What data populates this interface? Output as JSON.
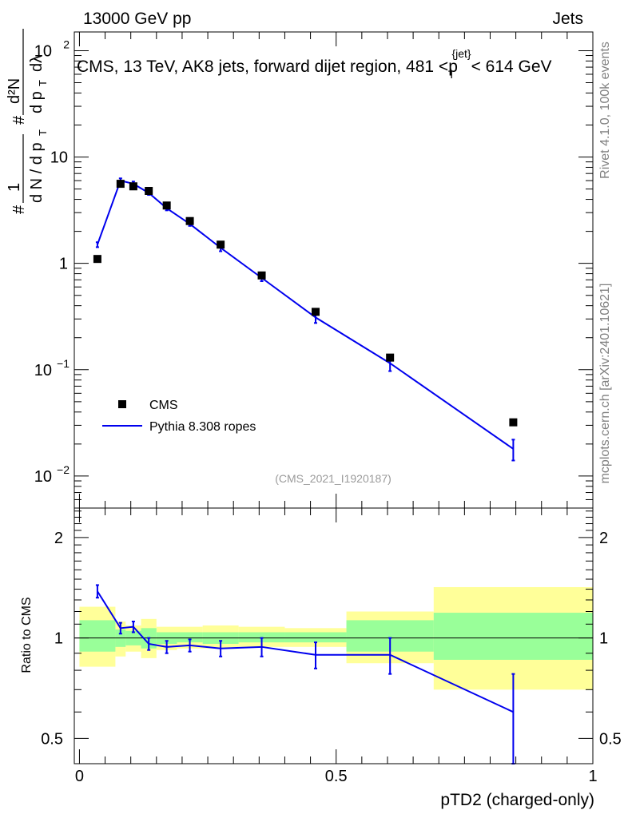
{
  "header": {
    "left": "13000 GeV pp",
    "right": "Jets"
  },
  "side_labels": {
    "rivet": "Rivet 4.1.0,  100k events",
    "mcplots": "mcplots.cern.ch [arXiv:2401.10621]"
  },
  "chart_data": [
    {
      "type": "line",
      "panel": "main",
      "title": "CMS, 13 TeV, AK8 jets, forward dijet region, 481 <p_T^{jet}< 614 GeV",
      "title_parts": {
        "prefix": "CMS, 13 TeV, AK8 jets, forward dijet region, 481 <p",
        "sub": "T",
        "sup": "{jet}",
        "suffix": "< 614 GeV"
      },
      "ylabel": "1/(dN/dp_T) d²N/(dp_T dλ)",
      "ylabel_parts": {
        "hash": "#",
        "one": "1",
        "dN": "d N / d p",
        "T": "T",
        "d2N": "d²N",
        "dp": "d p",
        "dl": "dλ"
      },
      "yscale": "log",
      "ylim": [
        0.005,
        150
      ],
      "xlim": [
        -0.01,
        1.0
      ],
      "yticks": [
        {
          "value": 0.01,
          "base": "10",
          "exp": "−2"
        },
        {
          "value": 0.1,
          "base": "10",
          "exp": "−1"
        },
        {
          "value": 1,
          "label": "1"
        },
        {
          "value": 10,
          "label": "10"
        },
        {
          "value": 100,
          "base": "10",
          "exp": "2"
        }
      ],
      "watermark": "(CMS_2021_I1920187)",
      "legend": {
        "position": "bottom-left",
        "entries": [
          "CMS",
          "Pythia 8.308 ropes"
        ]
      },
      "series": [
        {
          "name": "CMS",
          "style": "markers",
          "x": [
            0.035,
            0.08,
            0.105,
            0.135,
            0.17,
            0.215,
            0.275,
            0.355,
            0.46,
            0.605,
            0.845
          ],
          "y": [
            1.1,
            5.6,
            5.3,
            4.8,
            3.5,
            2.5,
            1.5,
            0.77,
            0.35,
            0.13,
            0.032
          ]
        },
        {
          "name": "Pythia 8.308 ropes",
          "style": "line",
          "color": "#0000ee",
          "x": [
            0.035,
            0.08,
            0.105,
            0.135,
            0.17,
            0.215,
            0.275,
            0.355,
            0.46,
            0.605,
            0.845
          ],
          "y": [
            1.5,
            6.0,
            5.6,
            4.6,
            3.3,
            2.35,
            1.4,
            0.73,
            0.31,
            0.115,
            0.018
          ],
          "yerr": [
            0.08,
            0.3,
            0.28,
            0.2,
            0.15,
            0.1,
            0.1,
            0.05,
            0.035,
            0.018,
            0.004
          ]
        }
      ]
    },
    {
      "type": "line",
      "panel": "ratio",
      "ylabel": "Ratio to CMS",
      "xlabel": "pTD2 (charged-only)",
      "ylim": [
        0.42,
        2.45
      ],
      "yticks": [
        0.5,
        1,
        2
      ],
      "ytick_labels": [
        "0.5",
        "1",
        "2"
      ],
      "xticks": [
        0,
        0.5,
        1
      ],
      "xtick_labels": [
        "0",
        "0.5",
        "1"
      ],
      "bands": [
        {
          "x0": 0.0,
          "x1": 0.07,
          "yellow": [
            0.82,
            1.24
          ],
          "green": [
            0.91,
            1.13
          ]
        },
        {
          "x0": 0.07,
          "x1": 0.09,
          "yellow": [
            0.88,
            1.12
          ],
          "green": [
            0.94,
            1.06
          ]
        },
        {
          "x0": 0.09,
          "x1": 0.12,
          "yellow": [
            0.91,
            1.09
          ],
          "green": [
            0.95,
            1.05
          ]
        },
        {
          "x0": 0.12,
          "x1": 0.15,
          "yellow": [
            0.87,
            1.14
          ],
          "green": [
            0.93,
            1.07
          ]
        },
        {
          "x0": 0.15,
          "x1": 0.19,
          "yellow": [
            0.92,
            1.08
          ],
          "green": [
            0.96,
            1.04
          ]
        },
        {
          "x0": 0.19,
          "x1": 0.24,
          "yellow": [
            0.93,
            1.08
          ],
          "green": [
            0.97,
            1.04
          ]
        },
        {
          "x0": 0.24,
          "x1": 0.31,
          "yellow": [
            0.93,
            1.09
          ],
          "green": [
            0.96,
            1.04
          ]
        },
        {
          "x0": 0.31,
          "x1": 0.4,
          "yellow": [
            0.94,
            1.08
          ],
          "green": [
            0.97,
            1.04
          ]
        },
        {
          "x0": 0.4,
          "x1": 0.52,
          "yellow": [
            0.94,
            1.07
          ],
          "green": [
            0.97,
            1.04
          ]
        },
        {
          "x0": 0.52,
          "x1": 0.69,
          "yellow": [
            0.84,
            1.2
          ],
          "green": [
            0.91,
            1.13
          ]
        },
        {
          "x0": 0.69,
          "x1": 1.0,
          "yellow": [
            0.7,
            1.42
          ],
          "green": [
            0.86,
            1.19
          ]
        }
      ],
      "series": [
        {
          "name": "Pythia 8.308 ropes / CMS",
          "color": "#0000ee",
          "x": [
            0.035,
            0.08,
            0.105,
            0.135,
            0.17,
            0.215,
            0.275,
            0.355,
            0.46,
            0.605,
            0.845
          ],
          "y": [
            1.38,
            1.07,
            1.08,
            0.96,
            0.94,
            0.95,
            0.93,
            0.94,
            0.89,
            0.89,
            0.6
          ],
          "yerr": [
            0.06,
            0.04,
            0.04,
            0.04,
            0.04,
            0.04,
            0.05,
            0.06,
            0.08,
            0.11,
            0.18
          ]
        }
      ]
    }
  ]
}
